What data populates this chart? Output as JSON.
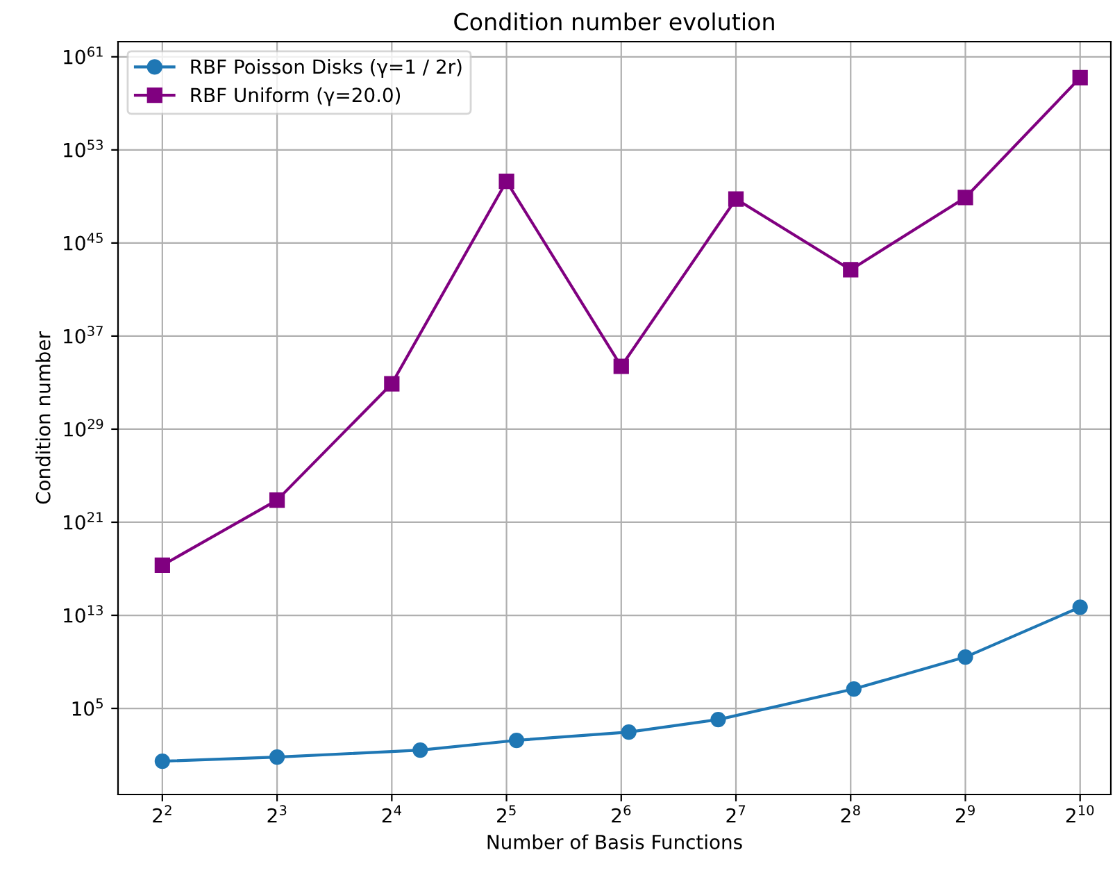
{
  "chart_data": {
    "type": "line",
    "title": "Condition number evolution",
    "xlabel": "Number of Basis Functions",
    "ylabel": "Condition number",
    "log": "xy",
    "grid": true,
    "legend": "top left",
    "xlim": [
      3.06,
      1233
    ],
    "ylim": [
      0.004,
      2e+62
    ],
    "xticks": [
      {
        "value": 4,
        "label": "2$^{2}$"
      },
      {
        "value": 8,
        "label": "2$^{3}$"
      },
      {
        "value": 16,
        "label": "2$^{4}$"
      },
      {
        "value": 32,
        "label": "2$^{5}$"
      },
      {
        "value": 64,
        "label": "2$^{6}$"
      },
      {
        "value": 128,
        "label": "2$^{7}$"
      },
      {
        "value": 256,
        "label": "2$^{8}$"
      },
      {
        "value": 512,
        "label": "2$^{9}$"
      },
      {
        "value": 1024,
        "label": "2$^{10}$"
      }
    ],
    "yticks": [
      {
        "value": 100000.0,
        "label": "10$^{5}$"
      },
      {
        "value": 10000000000000.0,
        "label": "10$^{13}$"
      },
      {
        "value": 1e+21,
        "label": "10$^{21}$"
      },
      {
        "value": 1e+29,
        "label": "10$^{29}$"
      },
      {
        "value": 1e+37,
        "label": "10$^{37}$"
      },
      {
        "value": 1e+45,
        "label": "10$^{45}$"
      },
      {
        "value": 1e+53,
        "label": "10$^{53}$"
      },
      {
        "value": 1e+61,
        "label": "10$^{61}$"
      }
    ],
    "series": [
      {
        "name": "RBF Poisson Disks (γ=1 / 2r)",
        "color": "#1f77b4",
        "marker": "circle",
        "x": [
          4,
          8,
          19,
          34,
          67,
          115,
          261,
          512,
          1024
        ],
        "values": [
          2.9,
          6.6,
          26,
          180,
          930,
          11000.0,
          4700000.0,
          2600000000.0,
          50000000000000.0
        ]
      },
      {
        "name": "RBF Uniform (γ=20.0)",
        "color": "#800080",
        "marker": "square",
        "x": [
          4,
          8,
          16,
          32,
          64,
          128,
          256,
          512,
          1024
        ],
        "values": [
          2e+17,
          8e+22,
          8e+32,
          2e+50,
          2.5e+34,
          6e+48,
          5e+42,
          8e+48,
          1.6e+59
        ]
      }
    ]
  }
}
